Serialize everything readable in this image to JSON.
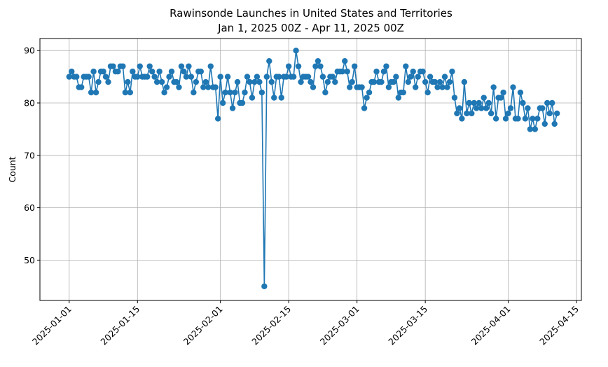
{
  "chart_data": {
    "type": "line",
    "title": "Rawinsonde Launches in United States and Territories",
    "subtitle": "Jan 1, 2025 00Z - Apr 11, 2025 00Z",
    "xlabel": "",
    "ylabel": "Count",
    "ylim": [
      42.3,
      92.3
    ],
    "yticks": [
      50,
      60,
      70,
      80,
      90
    ],
    "xlim": [
      "2024-12-26",
      "2025-04-16"
    ],
    "xticks": [
      "2025-01-01",
      "2025-01-15",
      "2025-02-01",
      "2025-02-15",
      "2025-03-01",
      "2025-03-15",
      "2025-04-01",
      "2025-04-15"
    ],
    "grid": true,
    "marker": "circle",
    "color": "#1f77b4",
    "series": [
      {
        "start": "2025-01-01",
        "step_days": 0.5,
        "values": [
          85,
          86,
          85,
          85,
          83,
          83,
          85,
          85,
          85,
          82,
          86,
          82,
          84,
          86,
          86,
          85,
          84,
          87,
          87,
          86,
          86,
          87,
          87,
          82,
          84,
          82,
          86,
          85,
          85,
          87,
          85,
          85,
          85,
          87,
          86,
          85,
          84,
          86,
          84,
          82,
          83,
          85,
          86,
          84,
          84,
          83,
          87,
          86,
          85,
          87,
          85,
          82,
          84,
          86,
          86,
          83,
          84,
          83,
          87,
          83,
          83,
          77,
          85,
          80,
          82,
          85,
          82,
          79,
          82,
          84,
          80,
          80,
          82,
          85,
          84,
          81,
          84,
          85,
          84,
          82,
          45,
          85,
          88,
          84,
          81,
          85,
          85,
          81,
          85,
          85,
          87,
          85,
          85,
          90,
          87,
          84,
          85,
          85,
          85,
          84,
          83,
          87,
          88,
          87,
          85,
          82,
          84,
          85,
          85,
          84,
          86,
          86,
          86,
          88,
          86,
          83,
          84,
          87,
          83,
          83,
          83,
          79,
          81,
          82,
          84,
          84,
          86,
          84,
          84,
          86,
          87,
          83,
          84,
          84,
          85,
          81,
          82,
          82,
          87,
          84,
          85,
          86,
          83,
          85,
          86,
          86,
          84,
          82,
          85,
          84,
          84,
          83,
          84,
          83,
          85,
          83,
          84,
          86,
          81,
          78,
          79,
          77,
          84,
          78,
          80,
          78,
          80,
          79,
          80,
          79,
          81,
          79,
          80,
          78,
          83,
          77,
          81,
          81,
          82,
          77,
          78,
          79,
          83,
          77,
          77,
          82,
          80,
          77,
          79,
          75,
          77,
          75,
          77,
          79,
          79,
          76,
          80,
          78,
          80,
          76,
          78
        ]
      }
    ]
  }
}
